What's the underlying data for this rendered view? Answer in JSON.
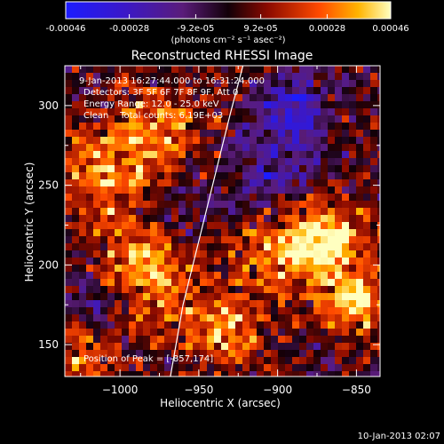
{
  "colorbar": {
    "tick_labels": [
      "-0.00046",
      "-0.00028",
      "-9.2e-05",
      "9.2e-05",
      "0.00028",
      "0.00046"
    ],
    "tick_values": [
      -0.00046,
      -0.00028,
      -9.2e-05,
      9.2e-05,
      0.00028,
      0.00046
    ],
    "range": [
      -0.00046,
      0.00046
    ],
    "unit_label": "(photons cm⁻² s⁻¹ asec⁻²)"
  },
  "chart_data": {
    "type": "heatmap",
    "title": "Reconstructed RHESSI Image",
    "xlabel": "Heliocentric X (arcsec)",
    "ylabel": "Heliocentric Y (arcsec)",
    "xlim": [
      -1035,
      -835
    ],
    "ylim": [
      130,
      325
    ],
    "x_ticks": [
      -1000,
      -950,
      -900,
      -850
    ],
    "x_tick_labels": [
      "−1000",
      "−950",
      "−900",
      "−850"
    ],
    "y_ticks": [
      150,
      200,
      250,
      300
    ],
    "y_tick_labels": [
      "150",
      "200",
      "250",
      "300"
    ],
    "grid": false,
    "annotations": [
      "9-Jan-2013 16:27:44.000 to 16:31:24.000",
      "Detectors: 3F 5F 6F 7F 8F 9F, Att 0",
      "Energy Range: 12.0 - 25.0 keV",
      "Clean    Total counts: 6.19E+03"
    ],
    "peak_label": "Position of Peak = [-857,174]",
    "peak_position": [
      -857,
      174
    ],
    "limb_curve": {
      "x": [
        -968,
        -960,
        -950,
        -940,
        -930,
        -922
      ],
      "y": [
        130,
        175,
        215,
        255,
        295,
        325
      ]
    },
    "intensity_sources": [
      {
        "x": -850,
        "y": 177,
        "amp": 0.00046,
        "sigma": 12
      },
      {
        "x": -868,
        "y": 215,
        "amp": 0.00038,
        "sigma": 16
      },
      {
        "x": -895,
        "y": 205,
        "amp": 0.0003,
        "sigma": 20
      },
      {
        "x": -985,
        "y": 195,
        "amp": 0.00036,
        "sigma": 22
      },
      {
        "x": -1010,
        "y": 255,
        "amp": 0.0003,
        "sigma": 20
      },
      {
        "x": -975,
        "y": 285,
        "amp": 0.0003,
        "sigma": 18
      },
      {
        "x": -935,
        "y": 160,
        "amp": 0.00032,
        "sigma": 16
      },
      {
        "x": -1020,
        "y": 145,
        "amp": 0.00024,
        "sigma": 16
      },
      {
        "x": -890,
        "y": 300,
        "amp": -0.0003,
        "sigma": 16
      },
      {
        "x": -905,
        "y": 260,
        "amp": -0.00022,
        "sigma": 18
      },
      {
        "x": -1015,
        "y": 175,
        "amp": -0.00024,
        "sigma": 16
      },
      {
        "x": -965,
        "y": 235,
        "amp": -0.00014,
        "sigma": 14
      }
    ]
  },
  "footer": {
    "timestamp": "10-Jan-2013 02:07"
  }
}
